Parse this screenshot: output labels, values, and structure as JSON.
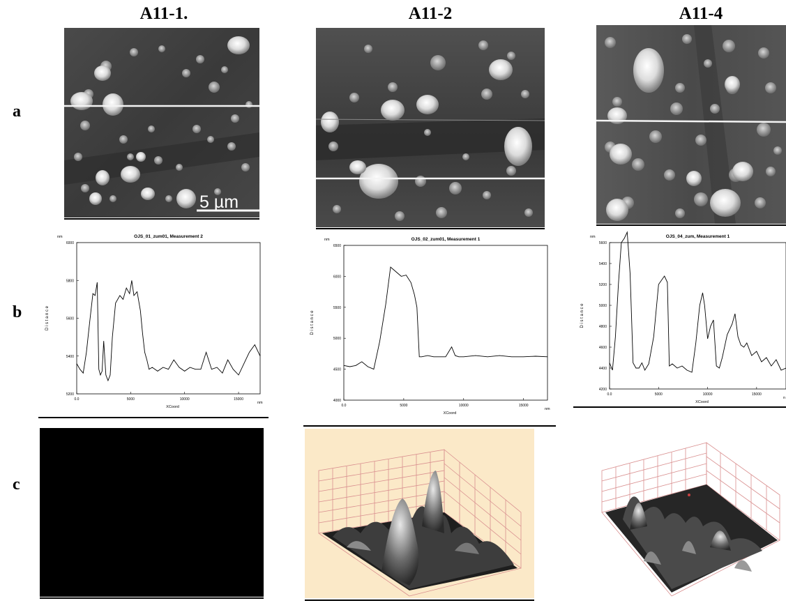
{
  "figure": {
    "columns": [
      {
        "title": "A11-1."
      },
      {
        "title": "A11-2"
      },
      {
        "title": "A11-4"
      }
    ],
    "rows": [
      "a",
      "b",
      "c"
    ],
    "scale_bar": "5 µm"
  },
  "profiles": [
    {
      "title": "OJS_01_zum01, Measurement 2",
      "unit_y": "nm",
      "unit_x": "nm",
      "ylabel": "D i s t a n c e",
      "xlabel": "XCoord",
      "yticks": [
        "5200",
        "5400",
        "5600",
        "5800",
        "6000"
      ],
      "xticks": [
        "0.0",
        "5000",
        "10000",
        "15000"
      ]
    },
    {
      "title": "OJS_02_zum01, Measurement 1",
      "unit_y": "nm",
      "unit_x": "nm",
      "ylabel": "D i s t a n c e",
      "xlabel": "XCoord",
      "yticks": [
        "4000",
        "4500",
        "5000",
        "5500",
        "6000",
        "6500"
      ],
      "xticks": [
        "0.0",
        "5000",
        "10000",
        "15000"
      ]
    },
    {
      "title": "OJS_04_zum, Measurement 1",
      "unit_y": "nm",
      "unit_x": "n",
      "ylabel": "D i s t a n c e",
      "xlabel": "XCoord",
      "yticks": [
        "4200",
        "4400",
        "4600",
        "4800",
        "5000",
        "5200",
        "5400",
        "5600"
      ],
      "xticks": [
        "0.0",
        "5000",
        "10000",
        "15000"
      ]
    }
  ],
  "chart_data": [
    {
      "type": "line",
      "title": "OJS_01_zum01, Measurement 2",
      "xlabel": "XCoord",
      "ylabel": "Distance",
      "xlim": [
        0,
        17000
      ],
      "ylim": [
        5200,
        6000
      ],
      "x": [
        0,
        300,
        600,
        900,
        1200,
        1500,
        1700,
        1900,
        2050,
        2200,
        2350,
        2500,
        2700,
        2900,
        3100,
        3300,
        3600,
        4000,
        4300,
        4600,
        4900,
        5100,
        5300,
        5600,
        5900,
        6100,
        6300,
        6500,
        6700,
        7000,
        7500,
        8000,
        8500,
        9000,
        9500,
        10000,
        10500,
        11000,
        11500,
        12000,
        12500,
        13000,
        13500,
        14000,
        14500,
        15000,
        15500,
        16000,
        16500,
        17000
      ],
      "y": [
        5360,
        5330,
        5310,
        5420,
        5580,
        5730,
        5720,
        5790,
        5330,
        5300,
        5320,
        5480,
        5300,
        5270,
        5300,
        5500,
        5680,
        5720,
        5700,
        5760,
        5730,
        5800,
        5720,
        5740,
        5640,
        5520,
        5420,
        5380,
        5330,
        5340,
        5320,
        5340,
        5330,
        5380,
        5340,
        5320,
        5340,
        5330,
        5330,
        5420,
        5330,
        5340,
        5310,
        5380,
        5330,
        5300,
        5360,
        5420,
        5460,
        5400
      ]
    },
    {
      "type": "line",
      "title": "OJS_02_zum01, Measurement 1",
      "xlabel": "XCoord",
      "ylabel": "Distance",
      "xlim": [
        0,
        17000
      ],
      "ylim": [
        4000,
        6500
      ],
      "x": [
        0,
        500,
        1000,
        1500,
        2000,
        2500,
        3000,
        3500,
        3900,
        4200,
        4500,
        4800,
        5200,
        5600,
        5900,
        6100,
        6300,
        6500,
        7000,
        7500,
        8000,
        8500,
        9000,
        9300,
        9600,
        10000,
        11000,
        12000,
        13000,
        14000,
        15000,
        16000,
        17000
      ],
      "y": [
        4560,
        4540,
        4560,
        4620,
        4540,
        4500,
        4950,
        5550,
        6150,
        6100,
        6050,
        6000,
        6020,
        5900,
        5700,
        5500,
        4700,
        4700,
        4720,
        4700,
        4700,
        4700,
        4860,
        4720,
        4700,
        4700,
        4720,
        4700,
        4720,
        4700,
        4700,
        4710,
        4700
      ]
    },
    {
      "type": "line",
      "title": "OJS_04_zum, Measurement 1",
      "xlabel": "XCoord",
      "ylabel": "Distance",
      "xlim": [
        0,
        18000
      ],
      "ylim": [
        4200,
        5600
      ],
      "x": [
        0,
        300,
        600,
        900,
        1200,
        1500,
        1800,
        2100,
        2400,
        2700,
        3000,
        3300,
        3600,
        4000,
        4500,
        5000,
        5300,
        5600,
        5900,
        6100,
        6400,
        6900,
        7400,
        7900,
        8400,
        8800,
        9200,
        9500,
        9700,
        10000,
        10300,
        10600,
        10900,
        11200,
        11500,
        12000,
        12500,
        12800,
        13100,
        13400,
        13700,
        14000,
        14500,
        15000,
        15500,
        16000,
        16500,
        17000,
        17500,
        18000
      ],
      "y": [
        4450,
        4380,
        4700,
        5200,
        5600,
        5640,
        5700,
        5300,
        4450,
        4400,
        4400,
        4450,
        4380,
        4440,
        4700,
        5200,
        5240,
        5280,
        5220,
        4420,
        4440,
        4400,
        4420,
        4380,
        4360,
        4640,
        5000,
        5120,
        5000,
        4680,
        4800,
        4860,
        4420,
        4400,
        4500,
        4720,
        4820,
        4920,
        4700,
        4620,
        4600,
        4640,
        4520,
        4560,
        4460,
        4500,
        4420,
        4480,
        4380,
        4400
      ]
    }
  ]
}
